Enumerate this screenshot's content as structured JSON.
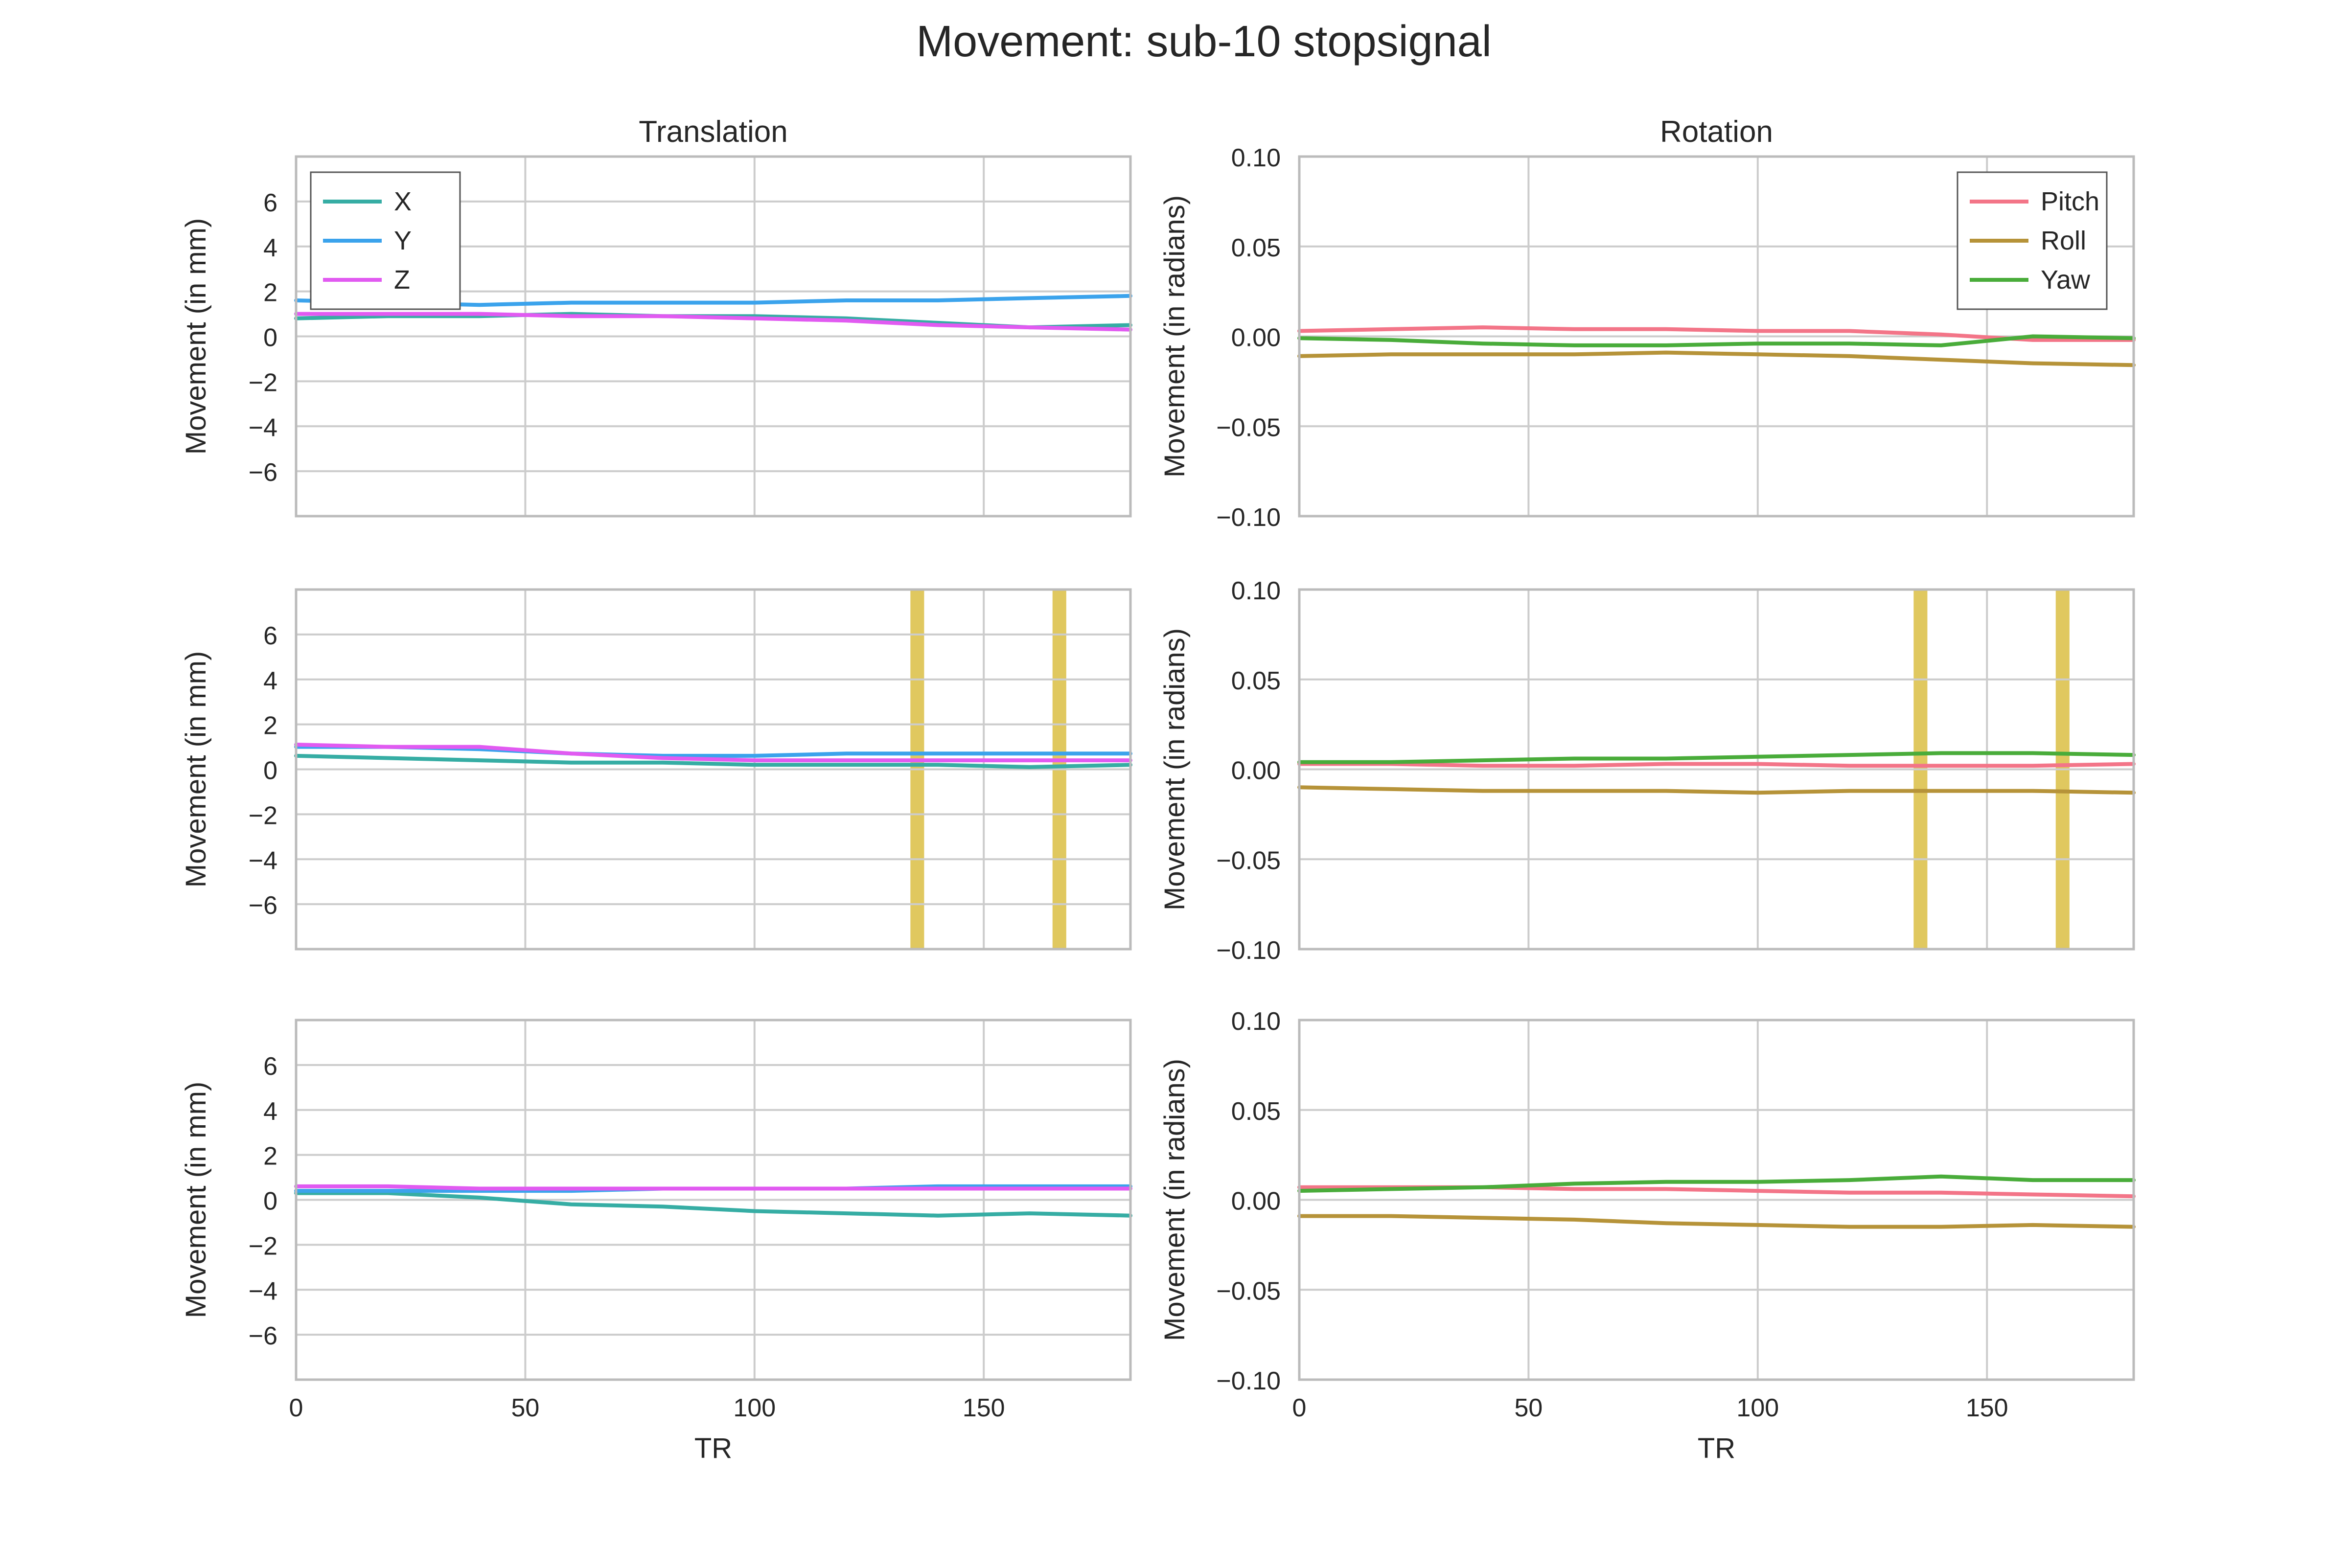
{
  "figure_title": "Movement: sub-10 stopsignal",
  "colors": {
    "X": "#36ada4",
    "Y": "#3ba3ec",
    "Z": "#e15af1",
    "Pitch": "#f37588",
    "Roll": "#b69339",
    "Yaw": "#49ac3a",
    "highlight": "#d6b52a",
    "grid": "#cccccc",
    "axis_frame": "#bbbbbb"
  },
  "chart_data": [
    {
      "type": "line",
      "title": "Translation",
      "xlabel": "",
      "ylabel": "Movement (in mm)",
      "xlim": [
        0,
        182
      ],
      "ylim": [
        -8,
        8
      ],
      "xticks": [
        0,
        50,
        100,
        150
      ],
      "xtick_labels": [],
      "yticks": [
        6,
        4,
        2,
        0,
        -2,
        -4,
        -6
      ],
      "ytick_labels": [
        "6",
        "4",
        "2",
        "0",
        "−2",
        "−4",
        "−6"
      ],
      "grid": true,
      "legend": {
        "location": "upper-left",
        "entries": [
          "X",
          "Y",
          "Z"
        ]
      },
      "highlights": [],
      "series": [
        {
          "name": "X",
          "x": [
            0,
            20,
            40,
            60,
            80,
            100,
            120,
            140,
            160,
            182
          ],
          "values": [
            0.8,
            0.9,
            0.9,
            1.0,
            0.9,
            0.9,
            0.8,
            0.6,
            0.4,
            0.5
          ]
        },
        {
          "name": "Y",
          "x": [
            0,
            20,
            40,
            60,
            80,
            100,
            120,
            140,
            160,
            182
          ],
          "values": [
            1.6,
            1.5,
            1.4,
            1.5,
            1.5,
            1.5,
            1.6,
            1.6,
            1.7,
            1.8
          ]
        },
        {
          "name": "Z",
          "x": [
            0,
            20,
            40,
            60,
            80,
            100,
            120,
            140,
            160,
            182
          ],
          "values": [
            1.0,
            1.0,
            1.0,
            0.9,
            0.9,
            0.8,
            0.7,
            0.5,
            0.4,
            0.3
          ]
        }
      ]
    },
    {
      "type": "line",
      "title": "Rotation",
      "xlabel": "",
      "ylabel": "Movement (in radians)",
      "xlim": [
        0,
        182
      ],
      "ylim": [
        -0.1,
        0.1
      ],
      "xticks": [
        0,
        50,
        100,
        150
      ],
      "xtick_labels": [],
      "yticks": [
        0.1,
        0.05,
        0,
        -0.05,
        -0.1
      ],
      "ytick_labels": [
        "0.10",
        "0.05",
        "0.00",
        "−0.05",
        "−0.10"
      ],
      "grid": true,
      "legend": {
        "location": "upper-right",
        "entries": [
          "Pitch",
          "Roll",
          "Yaw"
        ]
      },
      "highlights": [],
      "series": [
        {
          "name": "Pitch",
          "x": [
            0,
            20,
            40,
            60,
            80,
            100,
            120,
            140,
            160,
            182
          ],
          "values": [
            0.003,
            0.004,
            0.005,
            0.004,
            0.004,
            0.003,
            0.003,
            0.001,
            -0.002,
            -0.002
          ]
        },
        {
          "name": "Roll",
          "x": [
            0,
            20,
            40,
            60,
            80,
            100,
            120,
            140,
            160,
            182
          ],
          "values": [
            -0.011,
            -0.01,
            -0.01,
            -0.01,
            -0.009,
            -0.01,
            -0.011,
            -0.013,
            -0.015,
            -0.016
          ]
        },
        {
          "name": "Yaw",
          "x": [
            0,
            20,
            40,
            60,
            80,
            100,
            120,
            140,
            160,
            182
          ],
          "values": [
            -0.001,
            -0.002,
            -0.004,
            -0.005,
            -0.005,
            -0.004,
            -0.004,
            -0.005,
            0.0,
            -0.001
          ]
        }
      ]
    },
    {
      "type": "line",
      "title": "",
      "xlabel": "",
      "ylabel": "Movement (in mm)",
      "xlim": [
        0,
        182
      ],
      "ylim": [
        -8,
        8
      ],
      "xticks": [
        0,
        50,
        100,
        150
      ],
      "xtick_labels": [],
      "yticks": [
        6,
        4,
        2,
        0,
        -2,
        -4,
        -6
      ],
      "ytick_labels": [
        "6",
        "4",
        "2",
        "0",
        "−2",
        "−4",
        "−6"
      ],
      "grid": true,
      "legend": null,
      "highlights": [
        [
          134,
          137
        ],
        [
          165,
          168
        ]
      ],
      "series": [
        {
          "name": "X",
          "x": [
            0,
            20,
            40,
            60,
            80,
            100,
            120,
            140,
            160,
            182
          ],
          "values": [
            0.6,
            0.5,
            0.4,
            0.3,
            0.3,
            0.2,
            0.2,
            0.2,
            0.1,
            0.2
          ]
        },
        {
          "name": "Y",
          "x": [
            0,
            20,
            40,
            60,
            80,
            100,
            120,
            140,
            160,
            182
          ],
          "values": [
            1.0,
            1.0,
            0.9,
            0.7,
            0.6,
            0.6,
            0.7,
            0.7,
            0.7,
            0.7
          ]
        },
        {
          "name": "Z",
          "x": [
            0,
            20,
            40,
            60,
            80,
            100,
            120,
            140,
            160,
            182
          ],
          "values": [
            1.1,
            1.0,
            1.0,
            0.7,
            0.5,
            0.4,
            0.4,
            0.4,
            0.4,
            0.4
          ]
        }
      ]
    },
    {
      "type": "line",
      "title": "",
      "xlabel": "",
      "ylabel": "Movement (in radians)",
      "xlim": [
        0,
        182
      ],
      "ylim": [
        -0.1,
        0.1
      ],
      "xticks": [
        0,
        50,
        100,
        150
      ],
      "xtick_labels": [],
      "yticks": [
        0.1,
        0.05,
        0,
        -0.05,
        -0.1
      ],
      "ytick_labels": [
        "0.10",
        "0.05",
        "0.00",
        "−0.05",
        "−0.10"
      ],
      "grid": true,
      "legend": null,
      "highlights": [
        [
          134,
          137
        ],
        [
          165,
          168
        ]
      ],
      "series": [
        {
          "name": "Pitch",
          "x": [
            0,
            20,
            40,
            60,
            80,
            100,
            120,
            140,
            160,
            182
          ],
          "values": [
            0.003,
            0.003,
            0.002,
            0.002,
            0.003,
            0.003,
            0.002,
            0.002,
            0.002,
            0.003
          ]
        },
        {
          "name": "Roll",
          "x": [
            0,
            20,
            40,
            60,
            80,
            100,
            120,
            140,
            160,
            182
          ],
          "values": [
            -0.01,
            -0.011,
            -0.012,
            -0.012,
            -0.012,
            -0.013,
            -0.012,
            -0.012,
            -0.012,
            -0.013
          ]
        },
        {
          "name": "Yaw",
          "x": [
            0,
            20,
            40,
            60,
            80,
            100,
            120,
            140,
            160,
            182
          ],
          "values": [
            0.004,
            0.004,
            0.005,
            0.006,
            0.006,
            0.007,
            0.008,
            0.009,
            0.009,
            0.008
          ]
        }
      ]
    },
    {
      "type": "line",
      "title": "",
      "xlabel": "TR",
      "ylabel": "Movement (in mm)",
      "xlim": [
        0,
        182
      ],
      "ylim": [
        -8,
        8
      ],
      "xticks": [
        0,
        50,
        100,
        150
      ],
      "xtick_labels": [
        "0",
        "50",
        "100",
        "150"
      ],
      "yticks": [
        6,
        4,
        2,
        0,
        -2,
        -4,
        -6
      ],
      "ytick_labels": [
        "6",
        "4",
        "2",
        "0",
        "−2",
        "−4",
        "−6"
      ],
      "grid": true,
      "legend": null,
      "highlights": [],
      "series": [
        {
          "name": "X",
          "x": [
            0,
            20,
            40,
            60,
            80,
            100,
            120,
            140,
            160,
            182
          ],
          "values": [
            0.3,
            0.3,
            0.1,
            -0.2,
            -0.3,
            -0.5,
            -0.6,
            -0.7,
            -0.6,
            -0.7
          ]
        },
        {
          "name": "Y",
          "x": [
            0,
            20,
            40,
            60,
            80,
            100,
            120,
            140,
            160,
            182
          ],
          "values": [
            0.4,
            0.4,
            0.4,
            0.4,
            0.5,
            0.5,
            0.5,
            0.6,
            0.6,
            0.6
          ]
        },
        {
          "name": "Z",
          "x": [
            0,
            20,
            40,
            60,
            80,
            100,
            120,
            140,
            160,
            182
          ],
          "values": [
            0.6,
            0.6,
            0.5,
            0.5,
            0.5,
            0.5,
            0.5,
            0.5,
            0.5,
            0.5
          ]
        }
      ]
    },
    {
      "type": "line",
      "title": "",
      "xlabel": "TR",
      "ylabel": "Movement (in radians)",
      "xlim": [
        0,
        182
      ],
      "ylim": [
        -0.1,
        0.1
      ],
      "xticks": [
        0,
        50,
        100,
        150
      ],
      "xtick_labels": [
        "0",
        "50",
        "100",
        "150"
      ],
      "yticks": [
        0.1,
        0.05,
        0,
        -0.05,
        -0.1
      ],
      "ytick_labels": [
        "0.10",
        "0.05",
        "0.00",
        "−0.05",
        "−0.10"
      ],
      "grid": true,
      "legend": null,
      "highlights": [],
      "series": [
        {
          "name": "Pitch",
          "x": [
            0,
            20,
            40,
            60,
            80,
            100,
            120,
            140,
            160,
            182
          ],
          "values": [
            0.007,
            0.007,
            0.007,
            0.006,
            0.006,
            0.005,
            0.004,
            0.004,
            0.003,
            0.002
          ]
        },
        {
          "name": "Roll",
          "x": [
            0,
            20,
            40,
            60,
            80,
            100,
            120,
            140,
            160,
            182
          ],
          "values": [
            -0.009,
            -0.009,
            -0.01,
            -0.011,
            -0.013,
            -0.014,
            -0.015,
            -0.015,
            -0.014,
            -0.015
          ]
        },
        {
          "name": "Yaw",
          "x": [
            0,
            20,
            40,
            60,
            80,
            100,
            120,
            140,
            160,
            182
          ],
          "values": [
            0.005,
            0.006,
            0.007,
            0.009,
            0.01,
            0.01,
            0.011,
            0.013,
            0.011,
            0.011
          ]
        }
      ]
    }
  ]
}
